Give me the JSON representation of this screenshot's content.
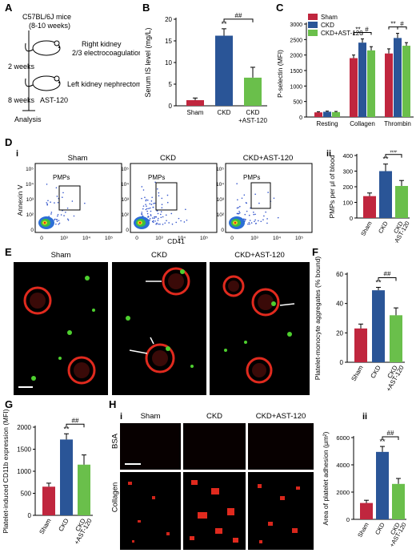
{
  "letters": {
    "A": "A",
    "B": "B",
    "C": "C",
    "D": "D",
    "E": "E",
    "F": "F",
    "G": "G",
    "H": "H",
    "Di": "i",
    "Dii": "ii",
    "Hi": "i",
    "Hii": "ii"
  },
  "schematic": {
    "mice": "C57BL/6J mice",
    "age": "(8-10 weeks)",
    "week2": "2 weeks",
    "week8": "8 weeks",
    "step1a": "Right kidney",
    "step1b": "2/3 electrocoagulation",
    "step2": "Left kidney nephrectomy",
    "drug": "AST-120",
    "analysis": "Analysis"
  },
  "groups": {
    "sham": "Sham",
    "ckd": "CKD",
    "ckd_ast": "CKD+AST-120",
    "ckd_ast_line1": "CKD",
    "ckd_ast_line2": "+AST-120"
  },
  "colors": {
    "sham": "#c0263e",
    "ckd": "#2a5597",
    "ckd_ast": "#6abf4b"
  },
  "flow": {
    "ylabel": "Annexin V",
    "xlabel": "CD41",
    "gate_label": "PMPs",
    "yticks": [
      "10⁵",
      "10⁴",
      "10³",
      "10²",
      "0"
    ],
    "xticks": [
      "0",
      "10³",
      "10⁴",
      "10⁵"
    ]
  },
  "micro_labels": {
    "bsa": "BSA",
    "collagen": "Collagen"
  },
  "chart_data": [
    {
      "id": "B",
      "type": "bar",
      "categories": [
        "Sham",
        "CKD",
        "CKD+AST-120"
      ],
      "values": [
        1.3,
        16.2,
        6.5
      ],
      "errors": [
        0.5,
        1.6,
        2.4
      ],
      "ylabel": "Serum IS level (mg/L)",
      "ylim": [
        0,
        20
      ],
      "yticks": [
        0,
        5,
        10,
        15,
        20
      ],
      "sig": {
        "CKD": "**"
      },
      "bracket": "##"
    },
    {
      "id": "C",
      "type": "bar",
      "categories": [
        "Resting",
        "Collagen",
        "Thrombin"
      ],
      "series": [
        {
          "name": "Sham",
          "values": [
            150,
            1900,
            2050
          ],
          "errors": [
            20,
            100,
            150
          ]
        },
        {
          "name": "CKD",
          "values": [
            170,
            2400,
            2550
          ],
          "errors": [
            20,
            120,
            150
          ]
        },
        {
          "name": "CKD+AST-120",
          "values": [
            160,
            2150,
            2300
          ],
          "errors": [
            20,
            120,
            100
          ]
        }
      ],
      "ylabel": "P-selectin (MFI)",
      "ylim": [
        0,
        3000
      ],
      "yticks": [
        0,
        500,
        1000,
        1500,
        2000,
        2500,
        3000
      ],
      "sig": [
        "**",
        "#"
      ],
      "legend": "top-left"
    },
    {
      "id": "Dii",
      "type": "bar",
      "categories": [
        "Sham",
        "CKD",
        "CKD+AST-120"
      ],
      "values": [
        140,
        300,
        205
      ],
      "errors": [
        20,
        45,
        35
      ],
      "ylabel": "PMPs per μl of blood",
      "ylim": [
        0,
        400
      ],
      "yticks": [
        0,
        100,
        200,
        300,
        400
      ],
      "sig": {
        "CKD": "**"
      },
      "bracket": "##"
    },
    {
      "id": "F",
      "type": "bar",
      "categories": [
        "Sham",
        "CKD",
        "CKD+AST-120"
      ],
      "values": [
        23,
        49,
        32
      ],
      "errors": [
        3,
        2,
        5
      ],
      "ylabel": "Platelet-monocyte aggregates (% bound)",
      "ylim": [
        0,
        60
      ],
      "yticks": [
        0,
        20,
        40,
        60
      ],
      "sig": {
        "CKD": "**"
      },
      "bracket": "##"
    },
    {
      "id": "G",
      "type": "bar",
      "categories": [
        "Sham",
        "CKD",
        "CKD+AST-120"
      ],
      "values": [
        650,
        1720,
        1150
      ],
      "errors": [
        80,
        130,
        220
      ],
      "ylabel": "Platelet-induced CD11b expression (MFI)",
      "ylim": [
        0,
        2000
      ],
      "yticks": [
        0,
        500,
        1000,
        1500,
        2000
      ],
      "sig": {
        "CKD": "**"
      },
      "bracket": "##"
    },
    {
      "id": "Hii",
      "type": "bar",
      "categories": [
        "Sham",
        "CKD",
        "CKD+AST-120"
      ],
      "values": [
        1200,
        4950,
        2600
      ],
      "errors": [
        200,
        400,
        400
      ],
      "ylabel": "Area of platelet adhesion (μm²)",
      "ylim": [
        0,
        6000
      ],
      "yticks": [
        0,
        2000,
        4000,
        6000
      ],
      "sig": {
        "CKD": "**"
      },
      "bracket": "##"
    }
  ]
}
